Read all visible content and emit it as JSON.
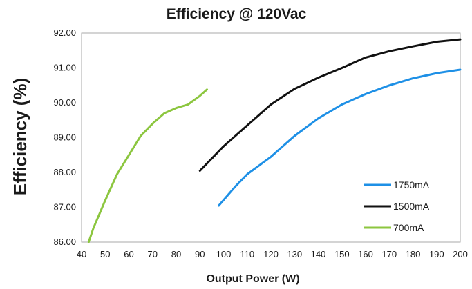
{
  "chart_data": {
    "type": "line",
    "title": "Efficiency @  120Vac",
    "xlabel": "Output Power (W)",
    "ylabel": "Efficiency (%)",
    "xlim": [
      40,
      200
    ],
    "ylim": [
      86.0,
      92.0
    ],
    "x_ticks": [
      "40",
      "50",
      "60",
      "70",
      "80",
      "90",
      "100",
      "110",
      "120",
      "130",
      "140",
      "150",
      "160",
      "170",
      "180",
      "190",
      "200"
    ],
    "y_ticks": [
      "86.00",
      "87.00",
      "88.00",
      "89.00",
      "90.00",
      "91.00",
      "92.00"
    ],
    "grid": false,
    "legend_position": "bottom-right",
    "series": [
      {
        "name": "1750mA",
        "color": "#1e90e6",
        "x": [
          98,
          105,
          110,
          115,
          120,
          130,
          140,
          150,
          160,
          170,
          180,
          190,
          200
        ],
        "y": [
          87.05,
          87.6,
          87.95,
          88.2,
          88.45,
          89.05,
          89.55,
          89.95,
          90.25,
          90.5,
          90.7,
          90.85,
          90.95
        ]
      },
      {
        "name": "1500mA",
        "color": "#111111",
        "x": [
          90,
          95,
          100,
          110,
          120,
          130,
          140,
          150,
          160,
          170,
          180,
          190,
          200
        ],
        "y": [
          88.05,
          88.4,
          88.75,
          89.35,
          89.95,
          90.4,
          90.72,
          91.0,
          91.3,
          91.48,
          91.62,
          91.75,
          91.82
        ]
      },
      {
        "name": "700mA",
        "color": "#8cc63f",
        "x": [
          43,
          45,
          50,
          55,
          60,
          65,
          70,
          75,
          80,
          85,
          90,
          93
        ],
        "y": [
          86.0,
          86.4,
          87.2,
          87.95,
          88.5,
          89.05,
          89.4,
          89.7,
          89.85,
          89.95,
          90.2,
          90.38
        ]
      }
    ]
  }
}
